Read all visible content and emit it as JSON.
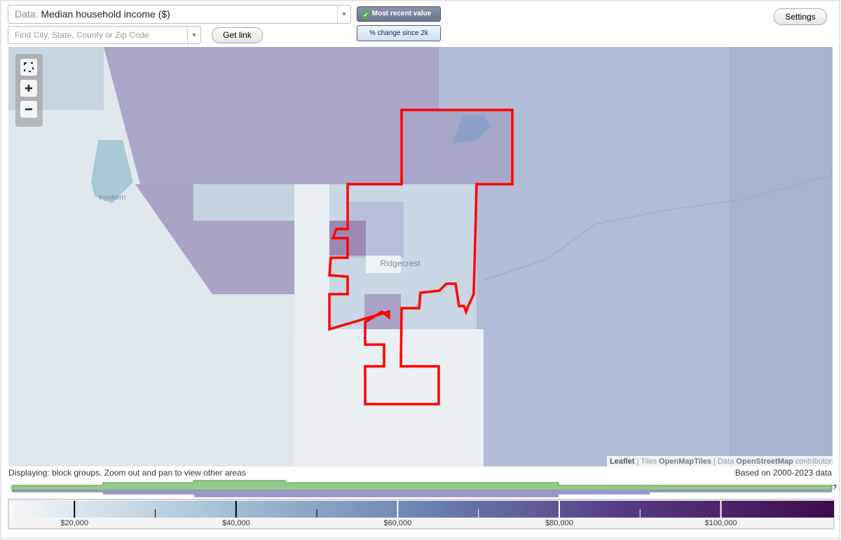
{
  "header": {
    "data_label": "Data:",
    "data_value": "Median household income ($)",
    "search_placeholder": "Find City, State, County or Zip Code",
    "get_link": "Get link",
    "most_recent": "Most recent value",
    "pct_change": "% change since 2k",
    "settings": "Settings"
  },
  "map": {
    "places": [
      "Inyokern",
      "Ridgecrest"
    ],
    "attribution": {
      "leaflet": "Leaflet",
      "tiles_label": "Tiles",
      "tiles": "OpenMapTiles",
      "data_label": "Data",
      "data": "OpenStreetMap",
      "contributors": "contributors"
    }
  },
  "footer": {
    "displaying": "Displaying: block groups. Zoom out and pan to view other areas",
    "based_on": "Based on 2000-2023 data",
    "help": "?"
  },
  "legend": {
    "range": [
      12000,
      114000
    ],
    "gradient": [
      "#f5f8f9",
      "#a9c2d6",
      "#6b83b2",
      "#553a82",
      "#3f0b4d"
    ],
    "ticks": [
      {
        "value": 20000,
        "label": "$20,000"
      },
      {
        "value": 40000,
        "label": "$40,000"
      },
      {
        "value": 60000,
        "label": "$60,000"
      },
      {
        "value": 80000,
        "label": "$80,000"
      },
      {
        "value": 100000,
        "label": "$100,000"
      }
    ],
    "minor_ticks": [
      30000,
      50000,
      70000,
      90000
    ]
  }
}
